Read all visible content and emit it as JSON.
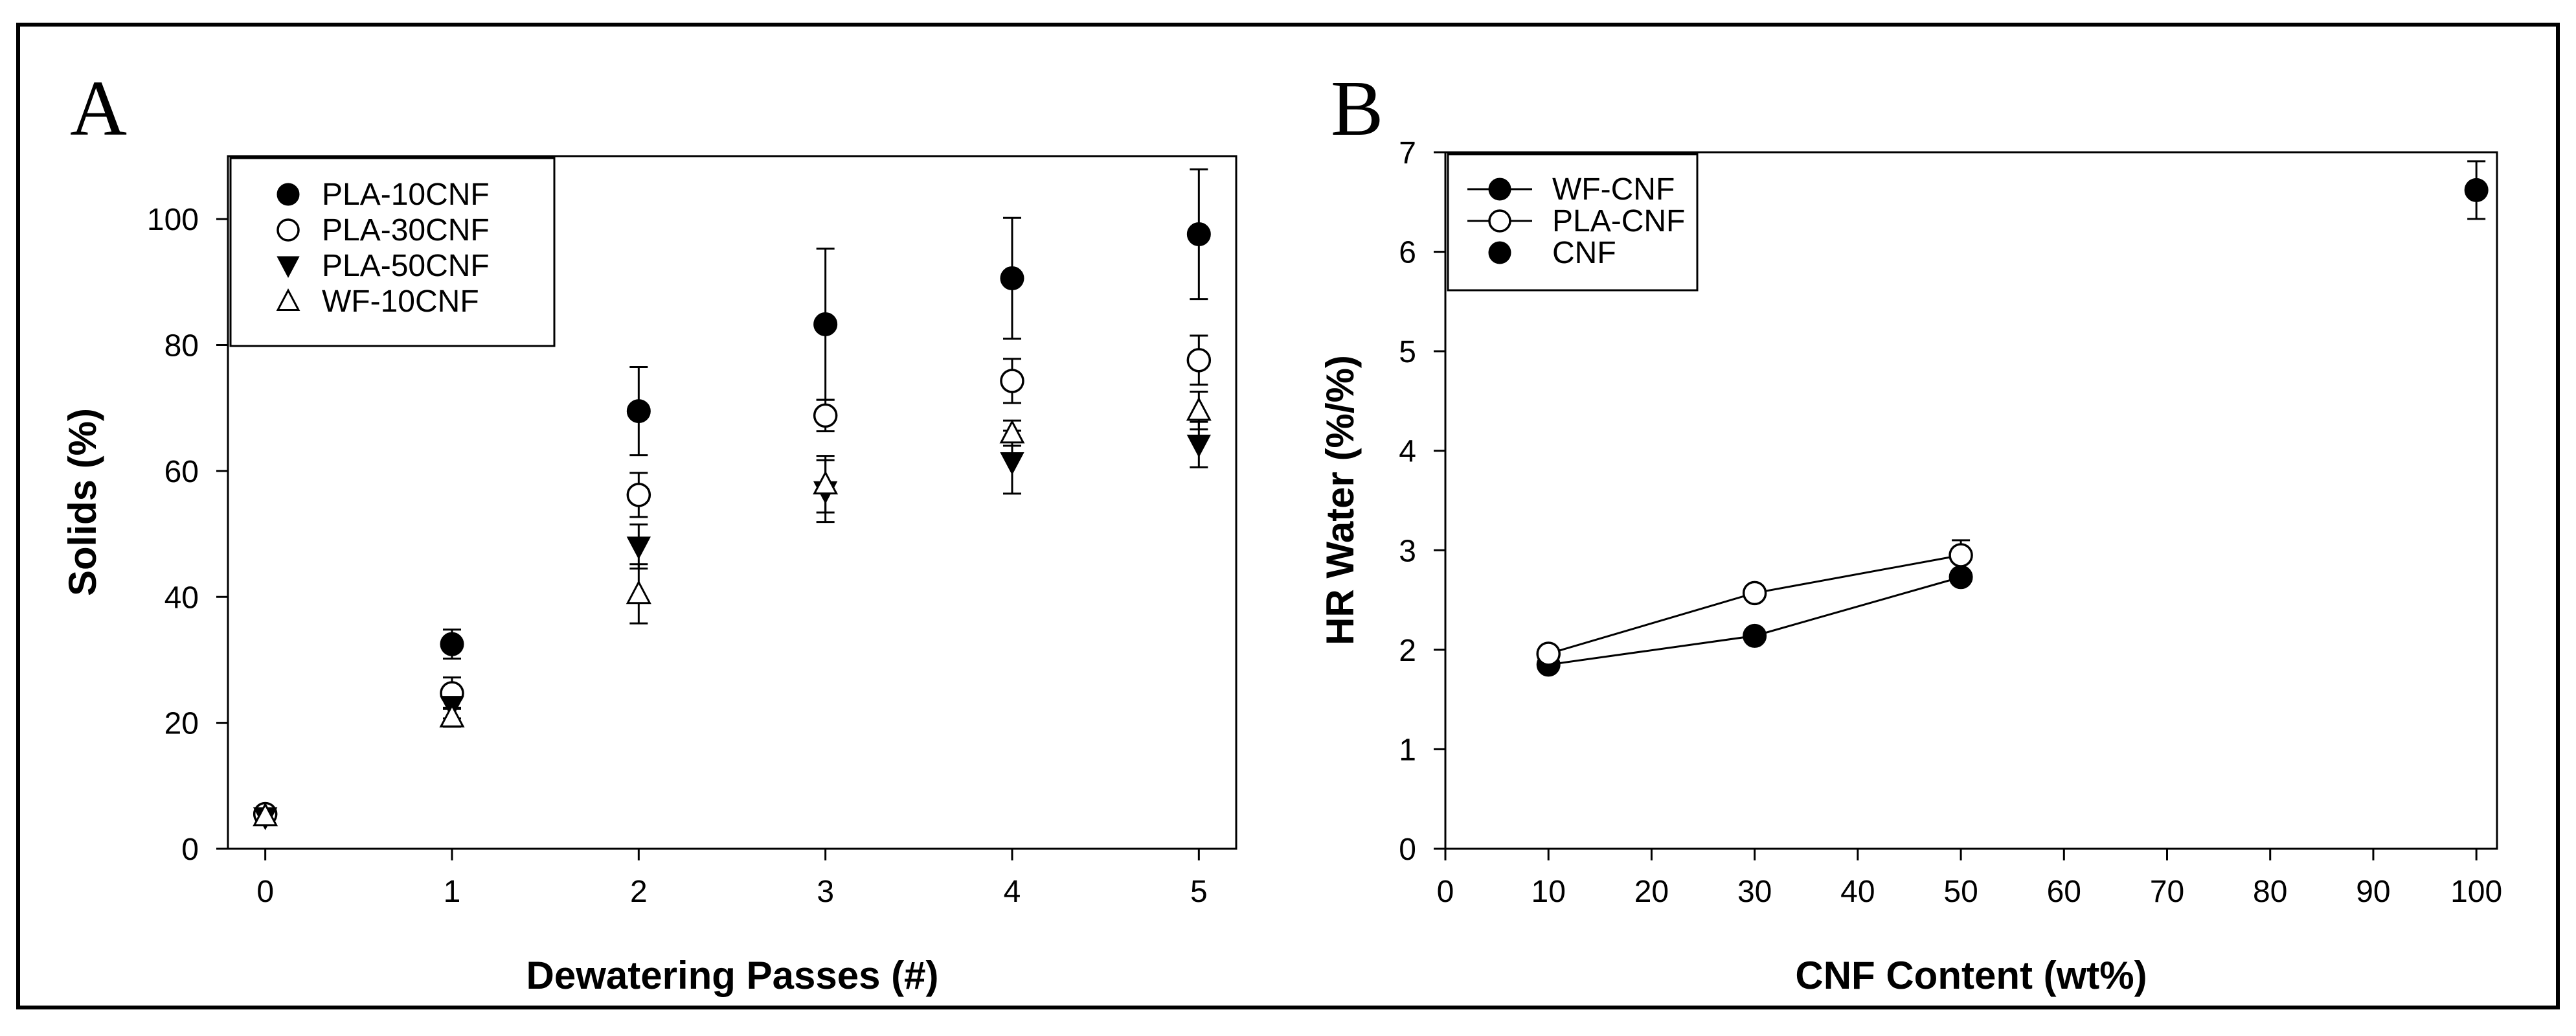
{
  "figure": {
    "panel_a_letter": "A",
    "panel_b_letter": "B"
  },
  "chart_data": [
    {
      "type": "scatter",
      "panel": "A",
      "title": "",
      "xlabel": "Dewatering Passes (#)",
      "ylabel": "Solids (%)",
      "xlim": [
        -0.2,
        5.2
      ],
      "ylim": [
        0,
        110
      ],
      "xticks": [
        0,
        1,
        2,
        3,
        4,
        5
      ],
      "yticks": [
        0,
        20,
        40,
        60,
        80,
        100
      ],
      "legend_position": "top-left",
      "series": [
        {
          "name": "PLA-10CNF",
          "marker": "filled-circle",
          "x": [
            0,
            1,
            2,
            3,
            4,
            5
          ],
          "y": [
            5.5,
            32.5,
            69.5,
            83.3,
            90.6,
            97.6
          ],
          "err": [
            1,
            2.3,
            7,
            12,
            9.6,
            10.3
          ]
        },
        {
          "name": "PLA-30CNF",
          "marker": "open-circle",
          "x": [
            0,
            1,
            2,
            3,
            4,
            5
          ],
          "y": [
            5.5,
            24.7,
            56.2,
            68.8,
            74.3,
            77.6
          ],
          "err": [
            1,
            2.5,
            3.5,
            2.5,
            3.5,
            3.9
          ]
        },
        {
          "name": "PLA-50CNF",
          "marker": "filled-triangle-down",
          "x": [
            0,
            1,
            2,
            3,
            4,
            5
          ],
          "y": [
            5.0,
            22.7,
            48.0,
            56.8,
            61.4,
            64.2
          ],
          "err": [
            1,
            2,
            3.5,
            4.9,
            5,
            3.6
          ]
        },
        {
          "name": "WF-10CNF",
          "marker": "open-triangle-up",
          "x": [
            0,
            1,
            2,
            3,
            4,
            5
          ],
          "y": [
            5.2,
            20.9,
            40.5,
            57.9,
            66.0,
            69.6
          ],
          "err": [
            1,
            1.5,
            4.7,
            4.5,
            2,
            3
          ]
        }
      ]
    },
    {
      "type": "line",
      "panel": "B",
      "title": "",
      "xlabel": "CNF Content (wt%)",
      "ylabel": "HR Water (%/%)",
      "xlim": [
        0,
        102
      ],
      "ylim": [
        0,
        7
      ],
      "xticks": [
        0,
        10,
        20,
        30,
        40,
        50,
        60,
        70,
        80,
        90,
        100
      ],
      "yticks": [
        0,
        1,
        2,
        3,
        4,
        5,
        6,
        7
      ],
      "legend_position": "top-left",
      "series": [
        {
          "name": "WF-CNF",
          "marker": "filled-circle",
          "line": true,
          "x": [
            10,
            30,
            50
          ],
          "y": [
            1.85,
            2.14,
            2.73
          ],
          "err": [
            0.05,
            0.05,
            0.07
          ]
        },
        {
          "name": "PLA-CNF",
          "marker": "open-circle",
          "line": true,
          "x": [
            10,
            30,
            50
          ],
          "y": [
            1.96,
            2.57,
            2.95
          ],
          "err": [
            0.04,
            0.05,
            0.15
          ]
        },
        {
          "name": "CNF",
          "marker": "filled-circle",
          "line": false,
          "x": [
            100
          ],
          "y": [
            6.62
          ],
          "err": [
            0.29
          ]
        }
      ]
    }
  ]
}
